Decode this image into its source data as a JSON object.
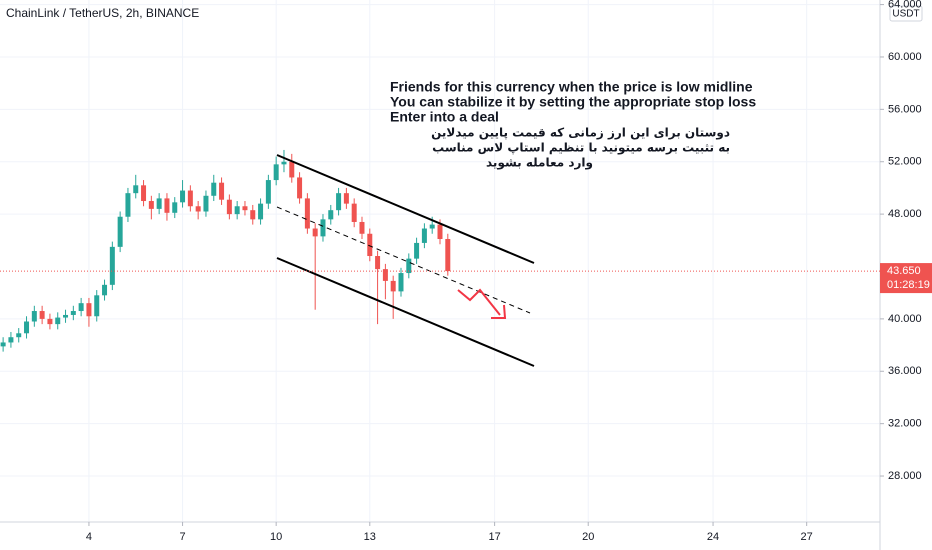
{
  "chart_data": {
    "type": "candlestick",
    "title": "ChainLink / TetherUS, 2h, BINANCE",
    "axis_unit": "USDT",
    "x": [
      1.25,
      1.5,
      1.75,
      2,
      2.25,
      2.5,
      2.75,
      3,
      3.25,
      3.5,
      3.75,
      4,
      4.25,
      4.5,
      4.75,
      5,
      5.25,
      5.5,
      5.75,
      6,
      6.25,
      6.5,
      6.75,
      7,
      7.25,
      7.5,
      7.75,
      8,
      8.25,
      8.5,
      8.75,
      9,
      9.25,
      9.5,
      9.75,
      10,
      10.25,
      10.5,
      10.75,
      11,
      11.25,
      11.5,
      11.75,
      12,
      12.25,
      12.5,
      12.75,
      13,
      13.25,
      13.5,
      13.75,
      14,
      14.25,
      14.5,
      14.75,
      15,
      15.25,
      15.5
    ],
    "open": [
      37.9,
      38.2,
      38.6,
      38.9,
      39.8,
      40.6,
      40.0,
      39.6,
      40.1,
      40.3,
      40.6,
      41.2,
      40.2,
      41.8,
      42.6,
      45.5,
      47.8,
      49.6,
      50.2,
      49.0,
      48.4,
      49.2,
      48.1,
      48.9,
      49.8,
      48.6,
      48.2,
      49.4,
      50.4,
      49.1,
      48.0,
      48.6,
      48.3,
      47.6,
      48.8,
      50.6,
      51.8,
      52.0,
      50.8,
      49.2,
      46.9,
      46.3,
      47.6,
      48.3,
      49.6,
      48.8,
      47.4,
      46.5,
      44.8,
      43.8,
      42.9,
      42.1,
      43.5,
      44.6,
      45.8,
      46.9,
      47.2,
      46.1
    ],
    "high": [
      38.6,
      39.0,
      39.3,
      40.2,
      41.0,
      41.0,
      40.4,
      40.5,
      40.7,
      41.0,
      41.6,
      41.6,
      42.2,
      43.0,
      45.9,
      48.2,
      50.0,
      51.0,
      50.6,
      49.4,
      49.6,
      49.6,
      49.3,
      50.6,
      50.2,
      49.0,
      49.8,
      51.0,
      50.8,
      49.5,
      49.0,
      49.0,
      48.7,
      49.2,
      51.0,
      52.4,
      52.9,
      52.6,
      51.2,
      49.6,
      47.3,
      48.0,
      48.7,
      50.0,
      50.0,
      49.2,
      47.8,
      46.9,
      45.2,
      44.2,
      43.3,
      43.9,
      45.0,
      46.2,
      47.3,
      47.8,
      47.6,
      46.5
    ],
    "low": [
      37.5,
      37.8,
      38.2,
      38.5,
      39.4,
      39.6,
      39.2,
      39.2,
      39.7,
      39.9,
      40.2,
      39.4,
      39.8,
      41.4,
      42.2,
      45.1,
      47.4,
      49.2,
      48.6,
      47.6,
      48.0,
      47.5,
      47.7,
      48.5,
      48.2,
      47.6,
      47.8,
      49.0,
      48.7,
      47.6,
      47.6,
      47.9,
      47.2,
      47.2,
      48.4,
      50.2,
      51.2,
      50.4,
      48.8,
      46.5,
      40.7,
      45.9,
      47.2,
      47.9,
      48.4,
      47.0,
      46.1,
      44.4,
      39.6,
      41.5,
      40.0,
      41.7,
      43.1,
      44.2,
      45.4,
      46.5,
      45.7,
      43.3
    ],
    "close": [
      38.2,
      38.6,
      38.9,
      39.8,
      40.6,
      40.0,
      39.6,
      40.1,
      40.3,
      40.6,
      41.2,
      40.2,
      41.8,
      42.6,
      45.5,
      47.8,
      49.6,
      50.2,
      49.0,
      48.4,
      49.2,
      48.1,
      48.9,
      49.8,
      48.6,
      48.2,
      49.4,
      50.4,
      49.1,
      48.0,
      48.6,
      48.3,
      47.6,
      48.8,
      50.6,
      51.8,
      52.0,
      50.8,
      49.2,
      46.9,
      46.3,
      47.6,
      48.3,
      49.6,
      48.8,
      47.4,
      46.5,
      44.8,
      43.8,
      42.9,
      42.1,
      43.5,
      44.6,
      45.8,
      46.9,
      47.2,
      46.1,
      43.65
    ],
    "up_color": "#26a69a",
    "down_color": "#ef5350",
    "xlim": [
      1.15,
      29.35
    ],
    "xticks": [
      4,
      7,
      10,
      13,
      17,
      20,
      24,
      27
    ],
    "ylim": [
      24.49,
      64.35
    ],
    "yticks": [
      {
        "value": 28,
        "label": "28.000"
      },
      {
        "value": 32,
        "label": "32.000"
      },
      {
        "value": 36,
        "label": "36.000"
      },
      {
        "value": 40,
        "label": "40.000"
      },
      {
        "value": 48,
        "label": "48.000"
      },
      {
        "value": 52,
        "label": "52.000"
      },
      {
        "value": 56,
        "label": "56.000"
      },
      {
        "value": 60,
        "label": "60.000"
      },
      {
        "value": 64,
        "label": "64.000"
      }
    ],
    "grid": true,
    "last_price": {
      "value": 43.65,
      "label": "43.650"
    },
    "countdown": "01:28:19",
    "annotations": [
      "Friends for this currency when the price is low midline",
      "You can stabilize it by setting the appropriate stop loss",
      "Enter into a deal"
    ],
    "annotations_fa": [
      "دوستان برای این ارز زمانی که قیمت پایین میدلاین",
      "به تثبیت برسه میتونید با تنظیم استاپ لاس مناسب",
      "وارد معامله بشوید"
    ]
  }
}
